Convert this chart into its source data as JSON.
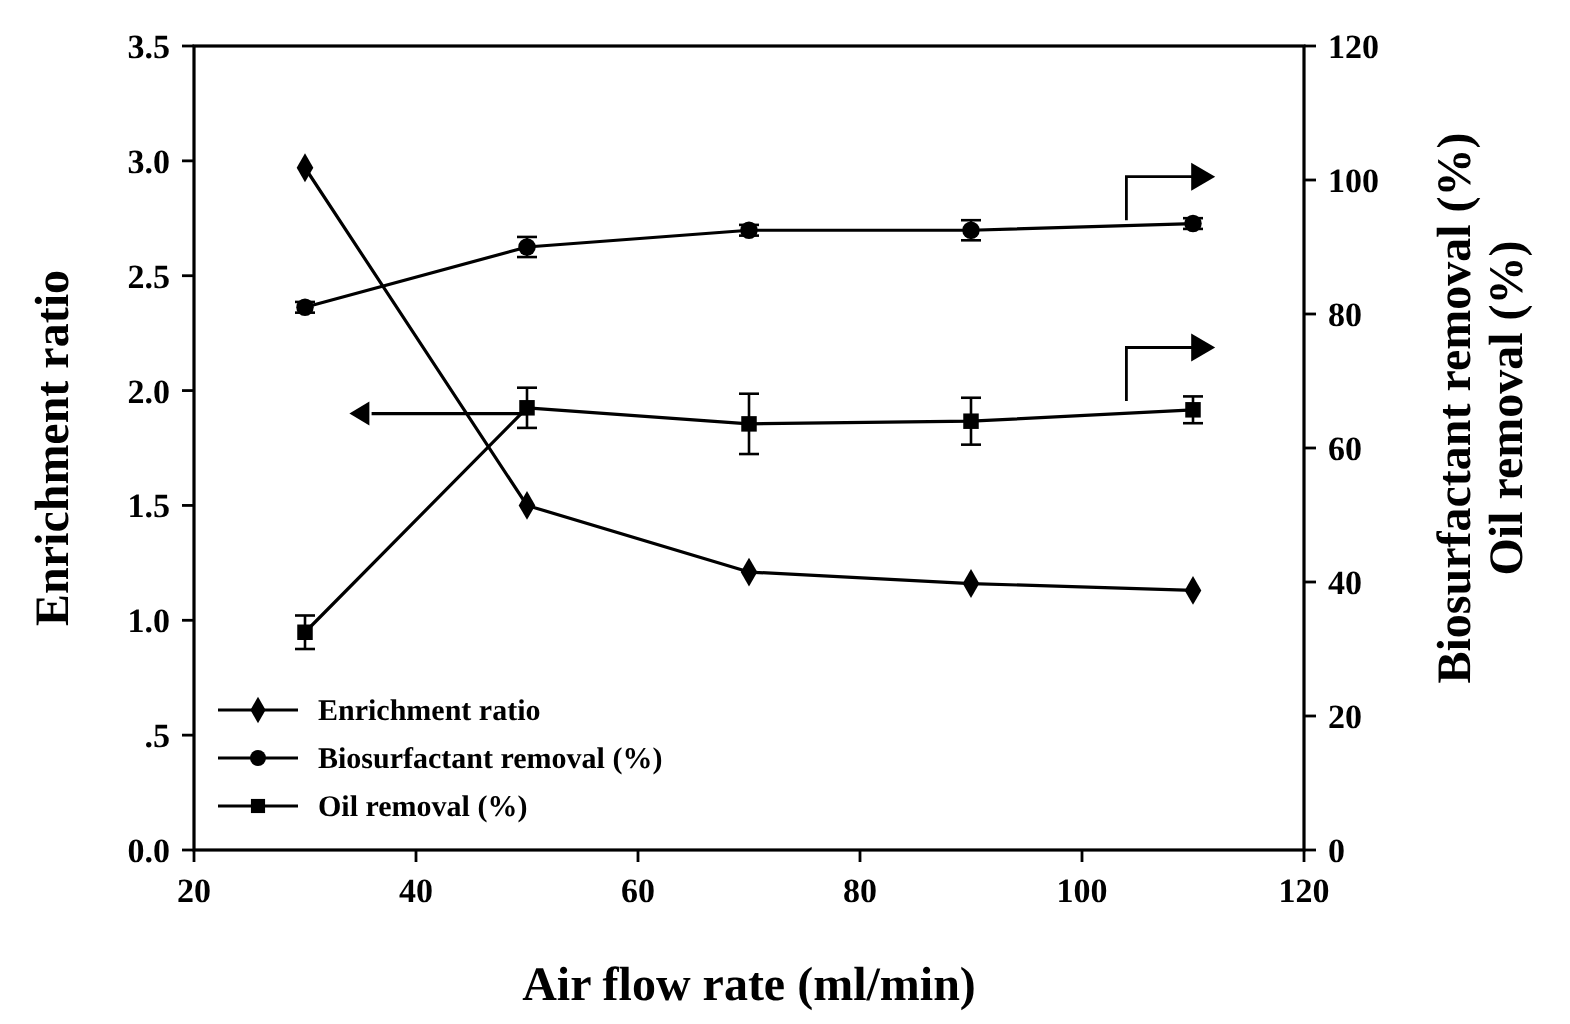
{
  "chart_data": {
    "type": "line",
    "xlabel": "Air flow rate (ml/min)",
    "ylabel": "Enrichment ratio",
    "y2label": "Biosurfactant removal (%)\nOil removal (%)",
    "x": [
      30,
      50,
      70,
      90,
      110
    ],
    "xlim": [
      20,
      120
    ],
    "xticks": [
      20,
      40,
      60,
      80,
      100,
      120
    ],
    "ylim": [
      0,
      3.5
    ],
    "yticks": [
      {
        "value": 0,
        "label": "0.0"
      },
      {
        "value": 0.5,
        "label": ".5"
      },
      {
        "value": 1,
        "label": "1.0"
      },
      {
        "value": 1.5,
        "label": "1.5"
      },
      {
        "value": 2,
        "label": "2.0"
      },
      {
        "value": 2.5,
        "label": "2.5"
      },
      {
        "value": 3,
        "label": "3.0"
      },
      {
        "value": 3.5,
        "label": "3.5"
      }
    ],
    "y2lim": [
      0,
      120
    ],
    "y2ticks": [
      0,
      20,
      40,
      60,
      80,
      100,
      120
    ],
    "legend": "bottom left",
    "grid": false,
    "line_style": "solid",
    "series": [
      {
        "name": "Enrichment ratio",
        "color": "#000000",
        "marker": "diamond",
        "values": [
          2.97,
          1.5,
          1.21,
          1.16,
          1.13
        ]
      },
      {
        "name": "Biosurfactant removal (%)",
        "color": "#000000",
        "marker": "circle",
        "axis": "y2",
        "values": [
          81,
          90,
          92.5,
          92.5,
          93.5
        ],
        "errors": [
          0.8,
          1.5,
          0.8,
          1.5,
          0.8
        ]
      },
      {
        "name": "Oil removal (%)",
        "color": "#000000",
        "marker": "square",
        "axis": "y2",
        "values": [
          32.5,
          66,
          63.6,
          64,
          65.7
        ],
        "errors": [
          2.5,
          3,
          4.5,
          3.5,
          2
        ]
      }
    ]
  }
}
